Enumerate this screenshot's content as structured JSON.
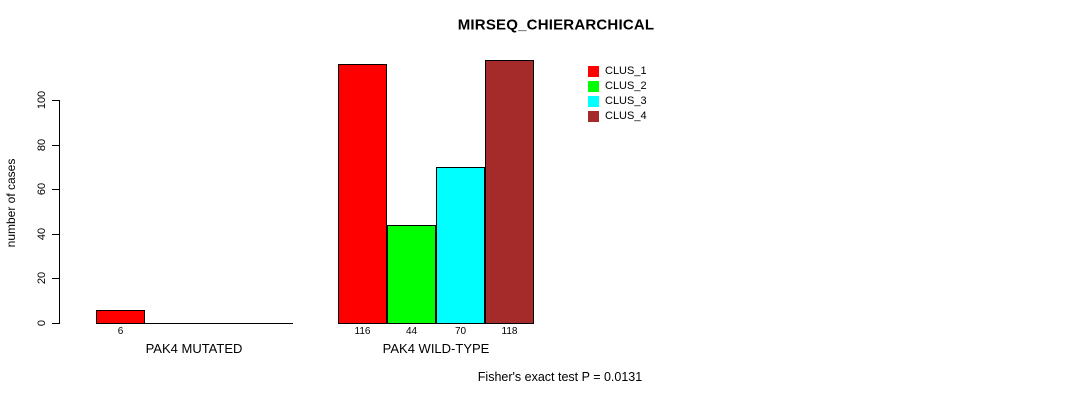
{
  "chart_data": {
    "type": "bar",
    "title": "MIRSEQ_CHIERARCHICAL",
    "xlabel": "",
    "ylabel": "number of cases",
    "annotation": "Fisher's exact test P = 0.0131",
    "ylim": [
      0,
      118
    ],
    "yticks": [
      0,
      20,
      40,
      60,
      80,
      100
    ],
    "grid": false,
    "background_color": "#ffffff",
    "axis_color": "#000000",
    "legend": {
      "position": "top-right",
      "entries": [
        {
          "label": "CLUS_1",
          "color": "#ff0000"
        },
        {
          "label": "CLUS_2",
          "color": "#00ff00"
        },
        {
          "label": "CLUS_3",
          "color": "#00ffff"
        },
        {
          "label": "CLUS_4",
          "color": "#a52a2a"
        }
      ]
    },
    "categories": [
      "PAK4 MUTATED",
      "PAK4 WILD-TYPE"
    ],
    "series": [
      {
        "name": "CLUS_1",
        "color": "#ff0000",
        "values": [
          6,
          116
        ]
      },
      {
        "name": "CLUS_2",
        "color": "#00ff00",
        "values": [
          0,
          44
        ]
      },
      {
        "name": "CLUS_3",
        "color": "#00ffff",
        "values": [
          0,
          70
        ]
      },
      {
        "name": "CLUS_4",
        "color": "#a52a2a",
        "values": [
          0,
          118
        ]
      }
    ],
    "bar_value_labels": [
      [
        "6",
        "",
        "",
        ""
      ],
      [
        "116",
        "44",
        "70",
        "118"
      ]
    ]
  }
}
